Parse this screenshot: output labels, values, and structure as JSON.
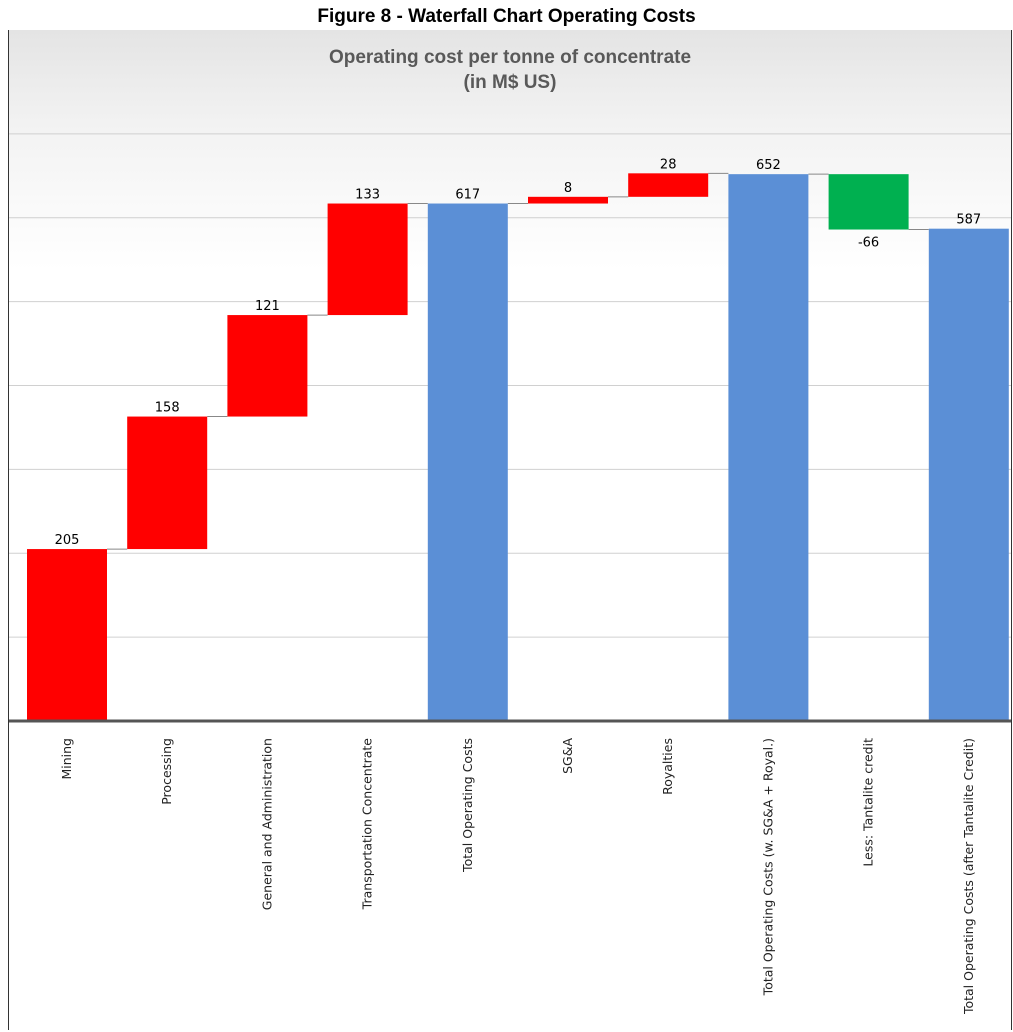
{
  "figure_caption": "Figure 8 - Waterfall Chart Operating Costs",
  "colors": {
    "increase": "#ff0000",
    "decrease": "#00b050",
    "total": "#5b8fd6"
  },
  "chart_data": {
    "type": "bar",
    "subtype": "waterfall",
    "title": [
      "Operating cost per tonne of concentrate",
      "(in M$ US)"
    ],
    "xlabel": "",
    "ylabel": "",
    "ylim": [
      0,
      700
    ],
    "grid": true,
    "legend": "none",
    "categories": [
      "Mining",
      "Processing",
      "General and Administration",
      "Transportation Concentrate",
      "Total Operating Costs",
      "SG&A",
      "Royalties",
      "Total Operating Costs (w. SG&A + Royal.)",
      "Less: Tantalite credit",
      "Total Operating Costs (after Tantalite Credit)"
    ],
    "values": [
      205,
      158,
      121,
      133,
      617,
      8,
      28,
      652,
      -66,
      587
    ],
    "kinds": [
      "increase",
      "increase",
      "increase",
      "increase",
      "total",
      "increase",
      "increase",
      "total",
      "decrease",
      "total"
    ],
    "data_labels": [
      "205",
      "158",
      "121",
      "133",
      "617",
      "8",
      "28",
      "652",
      "-66",
      "587"
    ]
  }
}
